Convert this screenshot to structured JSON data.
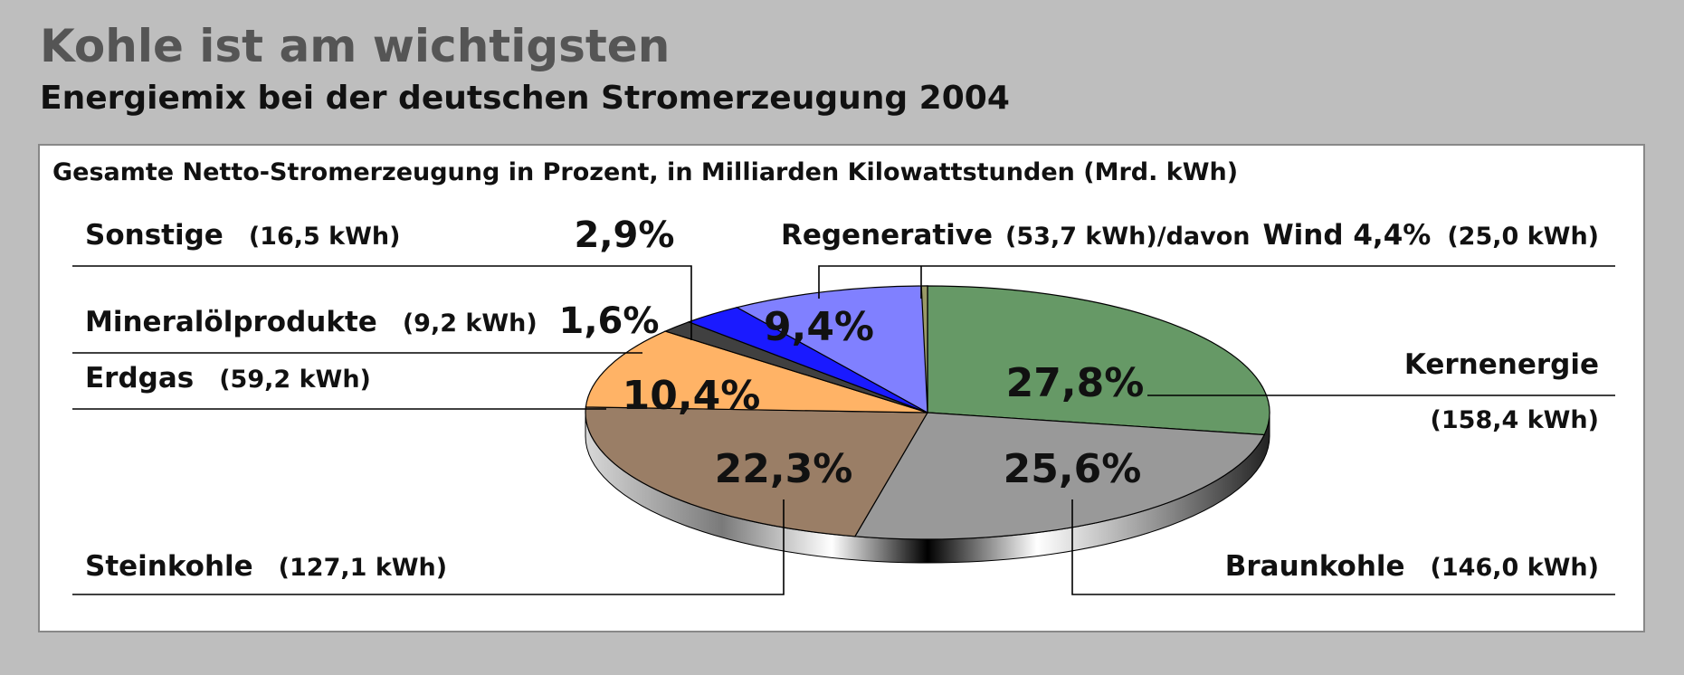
{
  "header": {
    "title": "Kohle ist am wichtigsten",
    "subtitle": "Energiemix bei der deutschen Stromerzeugung 2004"
  },
  "chart_data": {
    "type": "pie",
    "title": "Gesamte Netto-Stromerzeugung in Prozent, in Milliarden Kilowattstunden (Mrd. kWh)",
    "slices": [
      {
        "label": "Kernenergie",
        "percent": 27.8,
        "percent_label": "27,8%",
        "value_label": "(158,4 kWh)",
        "color": "#669966"
      },
      {
        "label": "Braunkohle",
        "percent": 25.6,
        "percent_label": "25,6%",
        "value_label": "(146,0 kWh)",
        "color": "#999999"
      },
      {
        "label": "Steinkohle",
        "percent": 22.3,
        "percent_label": "22,3%",
        "value_label": "(127,1 kWh)",
        "color": "#9a7e66"
      },
      {
        "label": "Erdgas",
        "percent": 10.4,
        "percent_label": "10,4%",
        "value_label": "(59,2 kWh)",
        "color": "#ffb366"
      },
      {
        "label": "Mineralölprodukte",
        "percent": 1.6,
        "percent_label": "1,6%",
        "value_label": "(9,2 kWh)",
        "color": "#404040"
      },
      {
        "label": "Sonstige",
        "percent": 2.9,
        "percent_label": "2,9%",
        "value_label": "(16,5 kWh)",
        "color": "#1a1aff"
      },
      {
        "label": "Regenerative",
        "percent": 9.4,
        "percent_label": "9,4%",
        "value_label": "(53,7 kWh)/davon",
        "color": "#8080ff"
      }
    ],
    "wind_note": {
      "label": "Wind 4,4%",
      "percent": 4.4,
      "value_label": "(25,0 kWh)",
      "color": "#999966"
    }
  }
}
